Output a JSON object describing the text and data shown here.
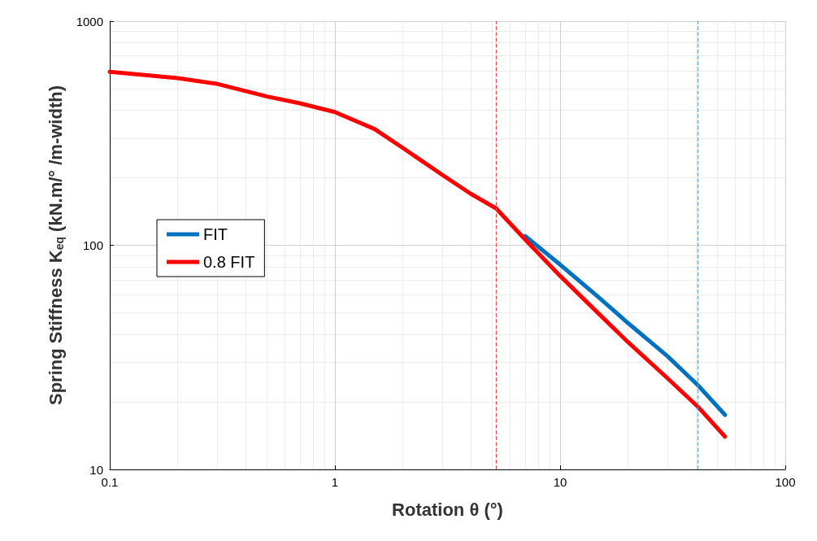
{
  "chart_data": {
    "type": "line",
    "xlabel": "Rotation θ (°)",
    "ylabel": "Spring Stiffness K$_{eq}$ (kN.m/° /m-width)",
    "log": "xy",
    "xlim": [
      0.1,
      100
    ],
    "ylim": [
      10,
      1000
    ],
    "xticks": [
      0.1,
      1,
      10,
      100
    ],
    "yticks": [
      10,
      100,
      1000
    ],
    "grid": true,
    "legend": "left",
    "marker": "none",
    "line_style": "solid",
    "series": [
      {
        "name": "FIT",
        "color": "#0070c0",
        "x": [
          7,
          10,
          15,
          20,
          30,
          41,
          54
        ],
        "values": [
          110,
          82,
          58,
          45,
          32,
          23.7,
          17.5
        ]
      },
      {
        "name": "0.8 FIT",
        "color": "#ff0000",
        "x": [
          0.1,
          0.2,
          0.3,
          0.5,
          0.7,
          1,
          1.5,
          2,
          3,
          4,
          5.2,
          7,
          10,
          15,
          20,
          30,
          41,
          54
        ],
        "values": [
          594,
          557,
          525,
          461,
          430,
          393,
          330,
          272,
          206,
          170,
          146,
          106,
          73,
          49,
          37,
          25.5,
          19,
          14
        ]
      }
    ],
    "ref_lines": [
      {
        "axis": "x",
        "value": 5.2,
        "color": "#e05050",
        "line_style": "dashed"
      },
      {
        "axis": "x",
        "value": 41,
        "color": "#5b9bd5",
        "line_style": "dashed"
      }
    ]
  }
}
